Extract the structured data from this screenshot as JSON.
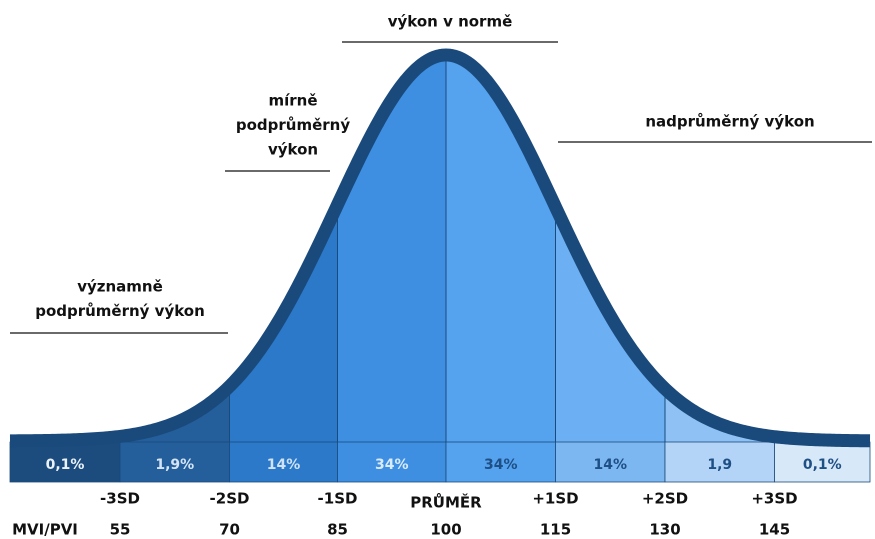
{
  "annotations": [
    {
      "lines": [
        "výkon v normě"
      ]
    },
    {
      "lines": [
        "mírně",
        "podprůměrný",
        "výkon"
      ]
    },
    {
      "lines": [
        "nadprůměrný výkon"
      ]
    },
    {
      "lines": [
        "významně",
        "podprůměrný výkon"
      ]
    }
  ],
  "segments": [
    "0,1%",
    "1,9%",
    "14%",
    "34%",
    "34%",
    "14%",
    "1,9",
    "0,1%"
  ],
  "sd_labels": [
    "-3SD",
    "-2SD",
    "-1SD",
    "PRŮMĚR",
    "+1SD",
    "+2SD",
    "+3SD"
  ],
  "scale_name": "MVI/PVI",
  "scale_values": [
    "55",
    "70",
    "85",
    "100",
    "115",
    "130",
    "145"
  ]
}
